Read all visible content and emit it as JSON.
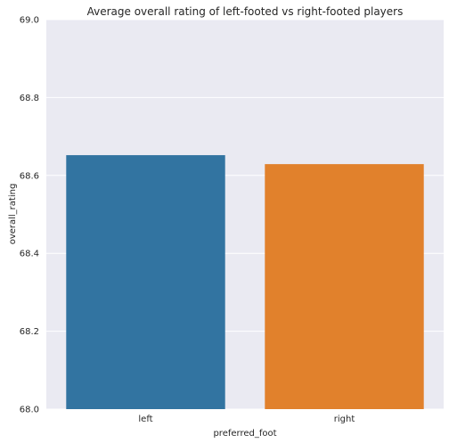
{
  "chart_data": {
    "type": "bar",
    "title": "Average overall rating of left-footed vs right-footed players",
    "xlabel": "preferred_foot",
    "ylabel": "overall_rating",
    "categories": [
      "left",
      "right"
    ],
    "values": [
      68.652,
      68.629
    ],
    "colors": [
      "#3274a1",
      "#e1812c"
    ],
    "ylim": [
      68.0,
      69.0
    ],
    "yticks": [
      "68.0",
      "68.2",
      "68.4",
      "68.6",
      "68.8",
      "69.0"
    ],
    "grid": true,
    "background": "#eaeaf2"
  }
}
